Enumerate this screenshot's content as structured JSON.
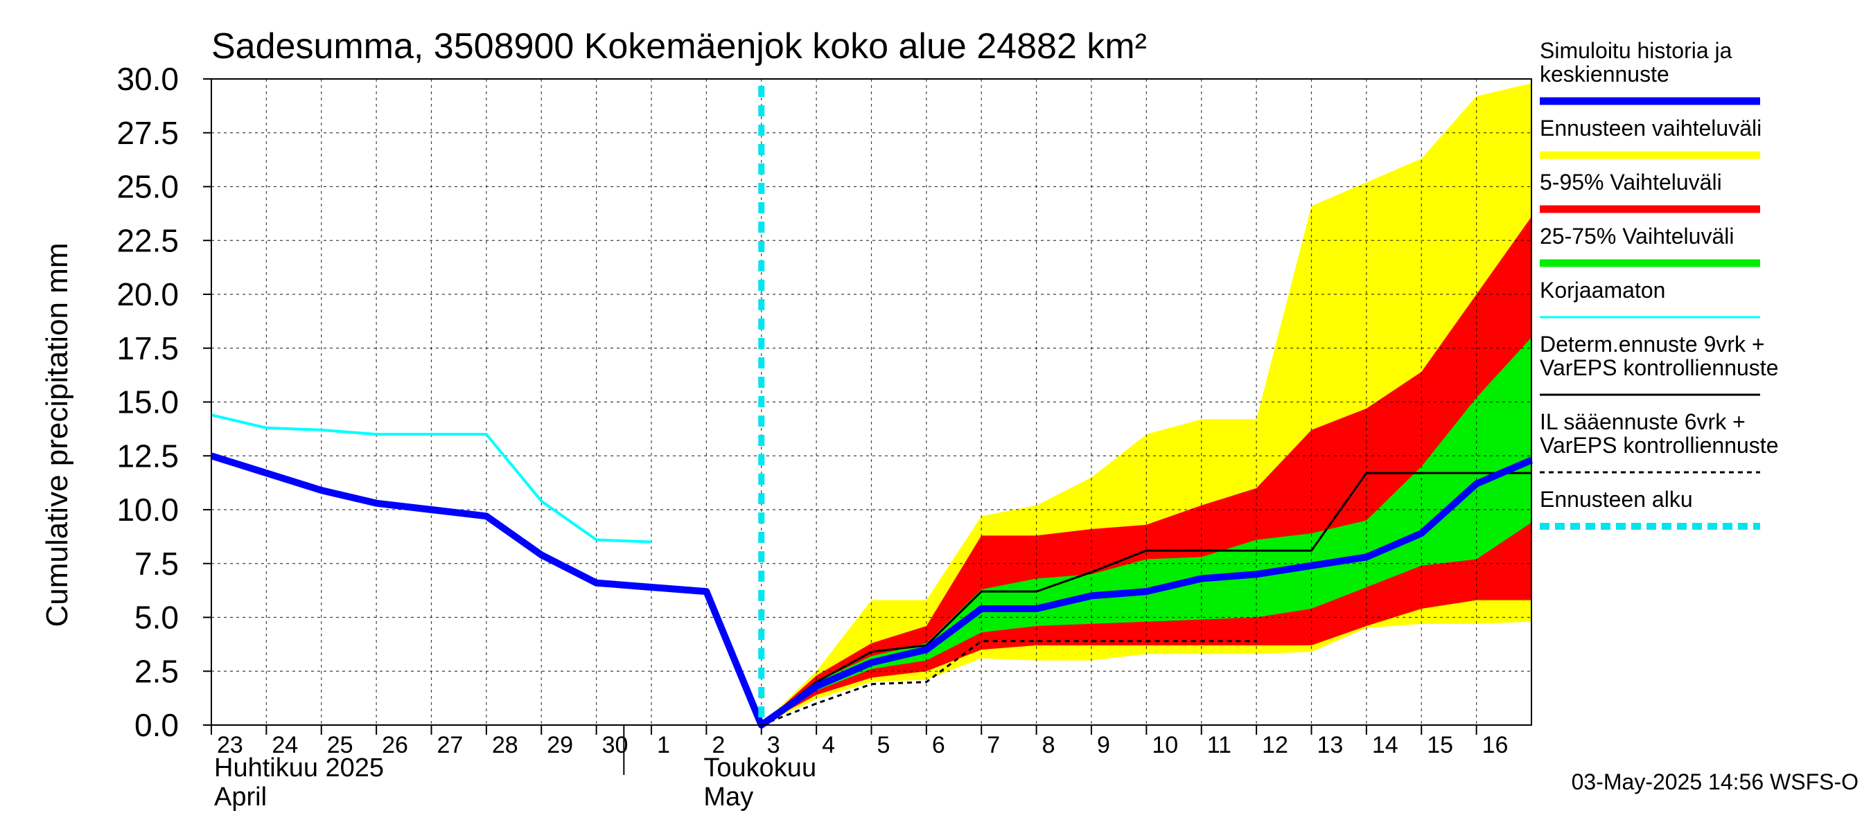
{
  "chart_data": {
    "type": "area",
    "title": "Sadesumma, 3508900 Kokemäenjok koko alue 24882 km²",
    "ylabel": "Cumulative precipitation   mm",
    "ylim": [
      0,
      30
    ],
    "yticks": [
      "0.0",
      "2.5",
      "5.0",
      "7.5",
      "10.0",
      "12.5",
      "15.0",
      "17.5",
      "20.0",
      "22.5",
      "25.0",
      "27.5",
      "30.0"
    ],
    "xlim": [
      -10.0,
      14.0
    ],
    "day_labels": [
      {
        "x": -10,
        "label": "23"
      },
      {
        "x": -9,
        "label": "24"
      },
      {
        "x": -8,
        "label": "25"
      },
      {
        "x": -7,
        "label": "26"
      },
      {
        "x": -6,
        "label": "27"
      },
      {
        "x": -5,
        "label": "28"
      },
      {
        "x": -4,
        "label": "29"
      },
      {
        "x": -3,
        "label": "30"
      },
      {
        "x": -2,
        "label": "1"
      },
      {
        "x": -1,
        "label": "2"
      },
      {
        "x": 0,
        "label": "3"
      },
      {
        "x": 1,
        "label": "4"
      },
      {
        "x": 2,
        "label": "5"
      },
      {
        "x": 3,
        "label": "6"
      },
      {
        "x": 4,
        "label": "7"
      },
      {
        "x": 5,
        "label": "8"
      },
      {
        "x": 6,
        "label": "9"
      },
      {
        "x": 7,
        "label": "10"
      },
      {
        "x": 8,
        "label": "11"
      },
      {
        "x": 9,
        "label": "12"
      },
      {
        "x": 10,
        "label": "13"
      },
      {
        "x": 11,
        "label": "14"
      },
      {
        "x": 12,
        "label": "15"
      },
      {
        "x": 13,
        "label": "16"
      }
    ],
    "month_labels": {
      "april_fi": "Huhtikuu  2025",
      "april_en": "April",
      "may_fi": "Toukokuu",
      "may_en": "May"
    },
    "forecast_start_x": 0,
    "x_unit_note": "days relative to 3 May 2025",
    "series": [
      {
        "name": "Ennusteen vaihteluväli",
        "kind": "band",
        "color": "#ffff00",
        "x": [
          0,
          1,
          2,
          3,
          4,
          5,
          6,
          7,
          8,
          9,
          10,
          11,
          12,
          13,
          14
        ],
        "lower": [
          0,
          1.2,
          2.0,
          2.1,
          3.1,
          3.0,
          3.0,
          3.3,
          3.3,
          3.3,
          3.4,
          4.5,
          4.7,
          4.7,
          4.8
        ],
        "upper": [
          0,
          2.5,
          5.8,
          5.8,
          9.7,
          10.2,
          11.5,
          13.5,
          14.2,
          14.2,
          24.1,
          25.2,
          26.3,
          29.2,
          29.8
        ]
      },
      {
        "name": "5-95% Vaihteluväli",
        "kind": "band",
        "color": "#ff0000",
        "x": [
          0,
          1,
          2,
          3,
          4,
          5,
          6,
          7,
          8,
          9,
          10,
          11,
          12,
          13,
          14
        ],
        "lower": [
          0,
          1.4,
          2.2,
          2.5,
          3.5,
          3.7,
          3.7,
          3.7,
          3.7,
          3.7,
          3.7,
          4.6,
          5.4,
          5.8,
          5.8
        ],
        "upper": [
          0,
          2.3,
          3.8,
          4.6,
          8.8,
          8.8,
          9.1,
          9.3,
          10.2,
          11.0,
          13.7,
          14.7,
          16.4,
          20.0,
          23.6
        ]
      },
      {
        "name": "25-75% Vaihteluväli",
        "kind": "band",
        "color": "#00ee00",
        "x": [
          0,
          1,
          2,
          3,
          4,
          5,
          6,
          7,
          8,
          9,
          10,
          11,
          12,
          13,
          14
        ],
        "lower": [
          0,
          1.6,
          2.6,
          3.0,
          4.3,
          4.6,
          4.7,
          4.8,
          4.9,
          5.0,
          5.4,
          6.4,
          7.4,
          7.7,
          9.4
        ],
        "upper": [
          0,
          2.0,
          3.2,
          3.8,
          6.3,
          6.8,
          7.0,
          7.7,
          7.8,
          8.6,
          8.9,
          9.5,
          12.0,
          15.2,
          18.0
        ]
      },
      {
        "name": "Korjaamaton",
        "kind": "line",
        "color": "#00ffff",
        "x": [
          -10,
          -9,
          -8,
          -7,
          -6,
          -5,
          -4,
          -3,
          -2
        ],
        "y": [
          14.4,
          13.8,
          13.7,
          13.5,
          13.5,
          13.5,
          10.4,
          8.6,
          8.5
        ]
      },
      {
        "name": "Determ.ennuste 9vrk + VarEPS kontrolliennuste",
        "kind": "line",
        "color": "#000000",
        "x": [
          0,
          1,
          2,
          3,
          4,
          5,
          6,
          7,
          8,
          9,
          10,
          11,
          12,
          13,
          14
        ],
        "y": [
          0,
          2.0,
          3.4,
          3.7,
          6.2,
          6.2,
          7.1,
          8.1,
          8.1,
          8.1,
          8.1,
          11.7,
          11.7,
          11.7,
          11.7
        ]
      },
      {
        "name": "IL sääennuste 6vrk + VarEPS kontrolliennuste",
        "kind": "dashed-line",
        "color": "#000000",
        "x": [
          0,
          1,
          2,
          3,
          4,
          5,
          6,
          7,
          8,
          9
        ],
        "y": [
          0,
          1.0,
          1.9,
          2.0,
          3.9,
          3.9,
          3.9,
          3.9,
          3.9,
          3.9
        ]
      },
      {
        "name": "Simuloitu historia ja keskiennuste",
        "kind": "line",
        "color": "#0000ff",
        "x": [
          -10,
          -9,
          -8,
          -7,
          -6,
          -5,
          -4,
          -3,
          -2,
          -1,
          0,
          1,
          2,
          3,
          4,
          5,
          6,
          7,
          8,
          9,
          10,
          11,
          12,
          13,
          14
        ],
        "y": [
          12.5,
          11.7,
          10.9,
          10.3,
          10.0,
          9.7,
          7.9,
          6.6,
          6.4,
          6.2,
          0,
          1.8,
          2.9,
          3.5,
          5.4,
          5.4,
          6.0,
          6.2,
          6.8,
          7.0,
          7.4,
          7.8,
          8.9,
          11.2,
          12.3
        ]
      }
    ],
    "legend": {
      "placement": "right",
      "entries": [
        {
          "lines": [
            "Simuloitu historia ja",
            "keskiennuste"
          ],
          "color": "#0000ff",
          "style": "thick"
        },
        {
          "lines": [
            "Ennusteen vaihteluväli"
          ],
          "color": "#ffff00",
          "style": "thick"
        },
        {
          "lines": [
            "5-95% Vaihteluväli"
          ],
          "color": "#ff0000",
          "style": "thick"
        },
        {
          "lines": [
            "25-75% Vaihteluväli"
          ],
          "color": "#00ee00",
          "style": "thick"
        },
        {
          "lines": [
            "Korjaamaton"
          ],
          "color": "#00ffff",
          "style": "thin"
        },
        {
          "lines": [
            "Determ.ennuste 9vrk +",
            "VarEPS kontrolliennuste"
          ],
          "color": "#000000",
          "style": "thin"
        },
        {
          "lines": [
            "IL sääennuste 6vrk  +",
            "  VarEPS kontrolliennuste"
          ],
          "color": "#000000",
          "style": "dashed"
        },
        {
          "lines": [
            "Ennusteen alku"
          ],
          "color": "#00e5ee",
          "style": "thick-dashed"
        }
      ]
    },
    "grid": true,
    "timestamp": "03-May-2025 14:56 WSFS-O"
  }
}
